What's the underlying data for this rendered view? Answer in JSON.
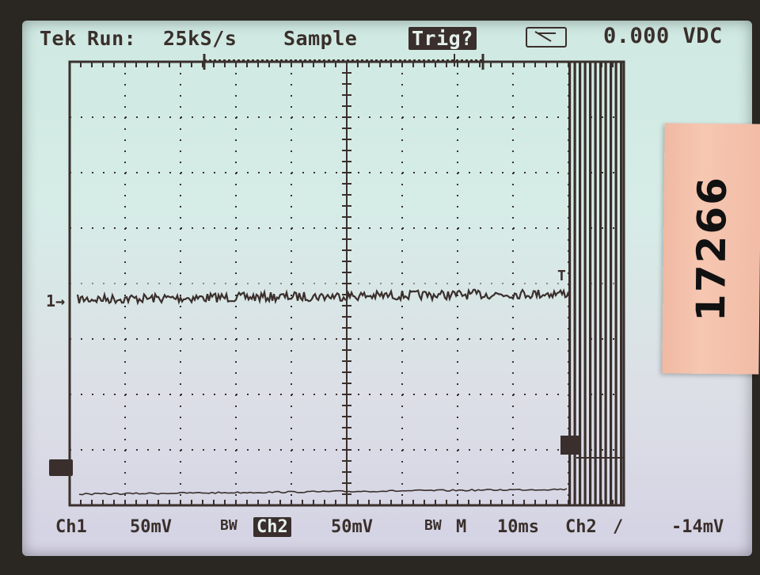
{
  "status_bar": {
    "brand": "Tek",
    "run_state": "Run:",
    "sample_rate": "25kS/s",
    "acq_mode": "Sample",
    "trigger_state": "Trig?",
    "meter_icon": "dc-meter-icon",
    "readout": "0.000 VDC"
  },
  "footer": {
    "ch1_label": "Ch1",
    "ch1_scale": "50mV",
    "ch1_bw": "BW",
    "ch2_label": "Ch2",
    "ch2_scale": "50mV",
    "ch2_bw": "BW",
    "timebase_mode": "M",
    "timebase": "10ms",
    "trigger_source": "Ch2",
    "trigger_slope": "/",
    "trigger_level": "-14mV"
  },
  "markers": {
    "ch1": "1→",
    "ch2": "2→",
    "trigger": "T"
  },
  "sticker": {
    "text": "17266"
  },
  "colors": {
    "trace": "#3a2f2c",
    "screen": "#d6ece7",
    "sticker": "#f6c7b1"
  }
}
